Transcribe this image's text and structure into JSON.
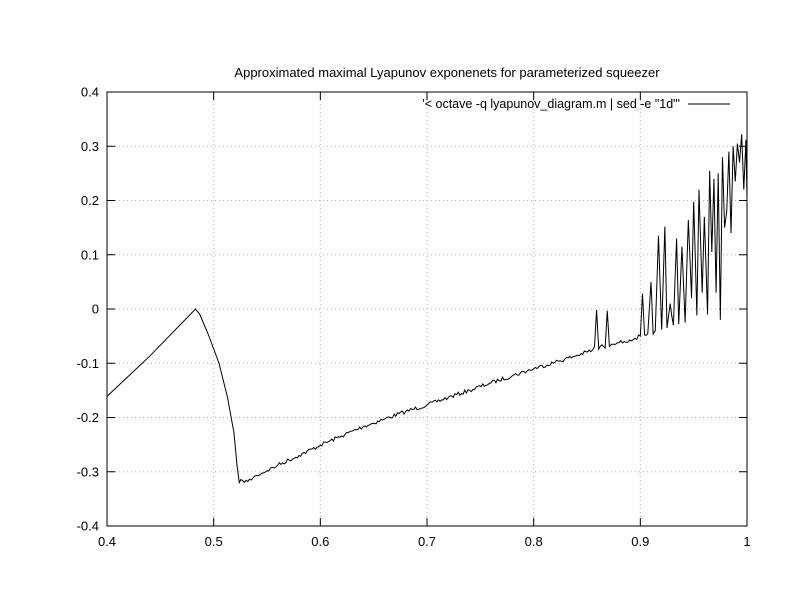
{
  "chart_data": {
    "type": "line",
    "title": "Approximated maximal Lyapunov exponenets for parameterized squeezer",
    "xlim": [
      0.4,
      1.0
    ],
    "ylim": [
      -0.4,
      0.4
    ],
    "xticks": [
      0.4,
      0.5,
      0.6,
      0.7,
      0.8,
      0.9,
      1.0
    ],
    "xtick_labels": [
      "0.4",
      "0.5",
      "0.6",
      "0.7",
      "0.8",
      "0.9",
      "1"
    ],
    "yticks": [
      -0.4,
      -0.3,
      -0.2,
      -0.1,
      0,
      0.1,
      0.2,
      0.3,
      0.4
    ],
    "ytick_labels": [
      "-0.4",
      "-0.3",
      "-0.2",
      "-0.1",
      "0",
      "0.1",
      "0.2",
      "0.3",
      "0.4"
    ],
    "grid": true,
    "legend_position": "top-right",
    "series": [
      {
        "name": "'< octave -q lyapunov_diagram.m | sed -e \"1d\"'",
        "color": "#000000",
        "x": [
          0.4,
          0.44,
          0.483,
          0.487,
          0.495,
          0.505,
          0.513,
          0.519,
          0.522,
          0.524,
          0.527,
          0.532,
          0.54,
          0.55,
          0.56,
          0.58,
          0.6,
          0.62,
          0.64,
          0.66,
          0.68,
          0.7,
          0.72,
          0.74,
          0.76,
          0.78,
          0.8,
          0.82,
          0.84,
          0.855,
          0.857,
          0.859,
          0.861,
          0.864,
          0.867,
          0.869,
          0.871,
          0.875,
          0.88,
          0.885,
          0.89,
          0.895,
          0.9,
          0.902,
          0.904,
          0.907,
          0.91,
          0.912,
          0.914,
          0.917,
          0.92,
          0.923,
          0.925,
          0.928,
          0.931,
          0.934,
          0.936,
          0.939,
          0.942,
          0.945,
          0.948,
          0.95,
          0.953,
          0.955,
          0.958,
          0.96,
          0.963,
          0.965,
          0.967,
          0.969,
          0.971,
          0.973,
          0.975,
          0.977,
          0.979,
          0.981,
          0.983,
          0.985,
          0.987,
          0.989,
          0.991,
          0.993,
          0.995,
          0.997,
          0.999,
          1.0
        ],
        "y": [
          -0.161,
          -0.087,
          0.0,
          -0.01,
          -0.047,
          -0.1,
          -0.163,
          -0.228,
          -0.29,
          -0.32,
          -0.316,
          -0.318,
          -0.307,
          -0.298,
          -0.288,
          -0.27,
          -0.251,
          -0.234,
          -0.217,
          -0.203,
          -0.189,
          -0.177,
          -0.163,
          -0.15,
          -0.136,
          -0.123,
          -0.11,
          -0.098,
          -0.086,
          -0.076,
          -0.07,
          -0.002,
          -0.074,
          -0.066,
          -0.072,
          -0.003,
          -0.069,
          -0.065,
          -0.062,
          -0.06,
          -0.057,
          -0.054,
          -0.05,
          0.028,
          -0.048,
          -0.045,
          0.05,
          -0.046,
          -0.04,
          0.135,
          -0.038,
          0.152,
          -0.035,
          0.01,
          -0.03,
          0.13,
          -0.028,
          0.115,
          -0.025,
          0.164,
          0.02,
          0.198,
          -0.012,
          0.22,
          0.03,
          0.17,
          -0.01,
          0.255,
          0.105,
          0.24,
          0.03,
          0.25,
          -0.02,
          0.28,
          0.15,
          0.18,
          0.29,
          0.14,
          0.3,
          0.235,
          0.305,
          0.27,
          0.322,
          0.22,
          0.312,
          0.202
        ]
      }
    ]
  }
}
